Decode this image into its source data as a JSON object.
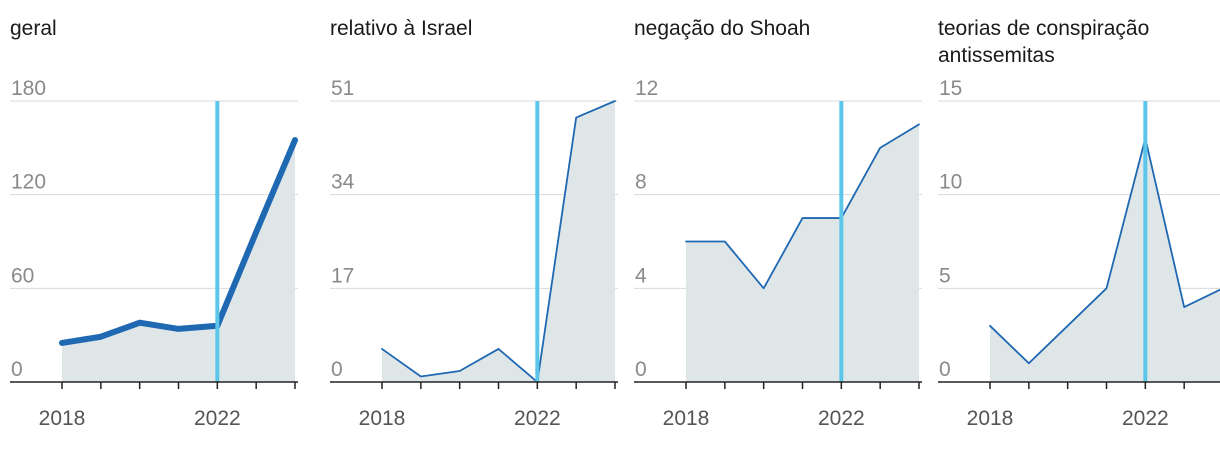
{
  "colors": {
    "line": "#1f68b2",
    "area": "#dfe6e8",
    "marker": "#5bc6ea",
    "grid": "#d9d9d9",
    "axis": "#222222",
    "tick_text": "#8a8a8a",
    "title_text": "#1a1a1a",
    "x_text": "#555555"
  },
  "chart_data": [
    {
      "type": "area",
      "title": "geral",
      "x": [
        2018,
        2019,
        2020,
        2021,
        2022,
        2023,
        2024
      ],
      "values": [
        25,
        29,
        38,
        34,
        36,
        96,
        155
      ],
      "ylim": [
        0,
        180
      ],
      "yticks": [
        0,
        60,
        120,
        180
      ],
      "xticks": [
        2018,
        2022
      ],
      "xlim": [
        2018,
        2024
      ],
      "marker_x": 2022,
      "line_style": "thick"
    },
    {
      "type": "area",
      "title": "relativo à Israel",
      "x": [
        2018,
        2019,
        2020,
        2021,
        2022,
        2023,
        2024
      ],
      "values": [
        6,
        1,
        2,
        6,
        0,
        48,
        51
      ],
      "ylim": [
        0,
        51
      ],
      "yticks": [
        0,
        17,
        34,
        51
      ],
      "xticks": [
        2018,
        2022
      ],
      "xlim": [
        2018,
        2024
      ],
      "marker_x": 2022,
      "line_style": "thin"
    },
    {
      "type": "area",
      "title": "negação do Shoah",
      "x": [
        2018,
        2019,
        2020,
        2021,
        2022,
        2023,
        2024
      ],
      "values": [
        6,
        6,
        4,
        7,
        7,
        10,
        11
      ],
      "ylim": [
        0,
        12
      ],
      "yticks": [
        0,
        4,
        8,
        12
      ],
      "xticks": [
        2018,
        2022
      ],
      "xlim": [
        2018,
        2024
      ],
      "marker_x": 2022,
      "line_style": "thin"
    },
    {
      "type": "area",
      "title": "teorias de conspiração antissemitas",
      "x": [
        2018,
        2019,
        2020,
        2021,
        2022,
        2023,
        2024
      ],
      "values": [
        3,
        1,
        3,
        5,
        13,
        4,
        5
      ],
      "ylim": [
        0,
        15
      ],
      "yticks": [
        0,
        5,
        10,
        15
      ],
      "xticks": [
        2018,
        2022
      ],
      "xlim": [
        2018,
        2024
      ],
      "marker_x": 2022,
      "line_style": "thin"
    }
  ]
}
